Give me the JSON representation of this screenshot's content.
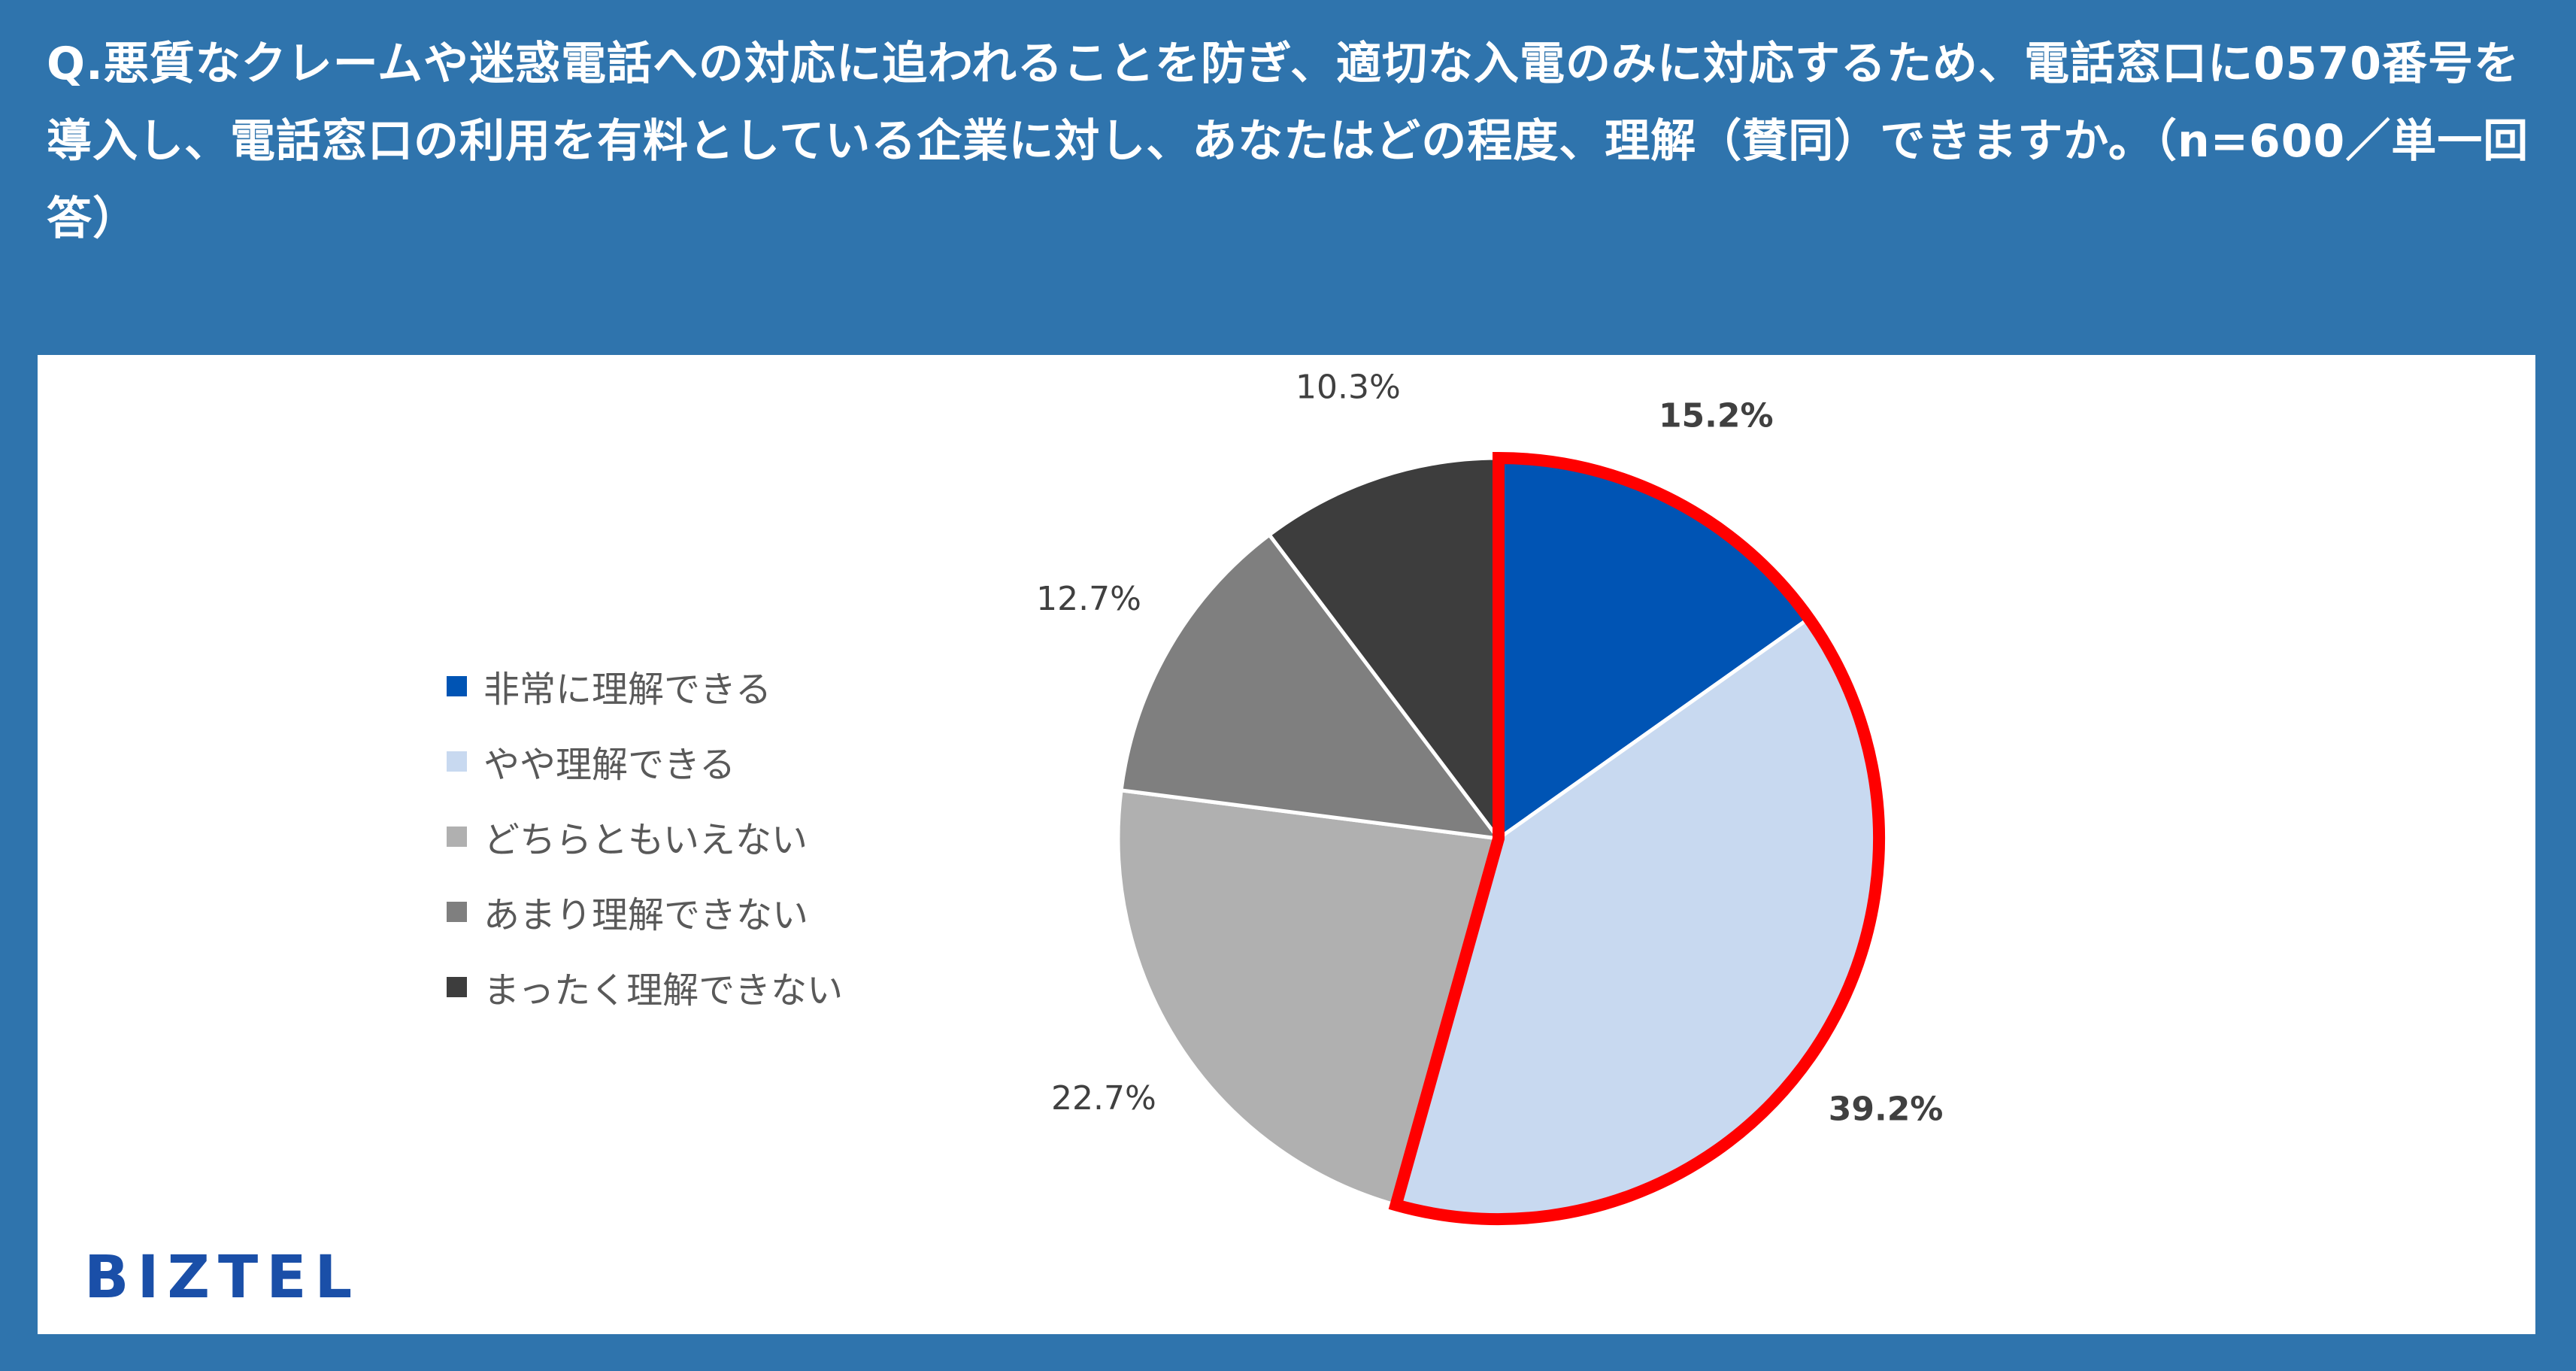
{
  "question": "Q.悪質なクレームや迷惑電話への対応に追われることを防ぎ、適切な入電のみに対応するため、電話窓口に0570番号を導入し、電話窓口の利用を有料としている企業に対し、あなたはどの程度、理解（賛同）できますか。（n=600／単一回答）",
  "logo": "BIZTEL",
  "colors": {
    "header_bg": "#2f74ad",
    "highlight_outline": "#ff0000"
  },
  "chart_data": {
    "type": "pie",
    "start_angle_deg": 0,
    "direction": "clockwise",
    "legend_position": "left",
    "highlighted_slices": [
      "非常に理解できる",
      "やや理解できる"
    ],
    "slices": [
      {
        "label": "非常に理解できる",
        "value": 15.2,
        "display": "15.2%",
        "color": "#0054b4",
        "bold": true
      },
      {
        "label": "やや理解できる",
        "value": 39.2,
        "display": "39.2%",
        "color": "#c8d9f0",
        "bold": true
      },
      {
        "label": "どちらともいえない",
        "value": 22.7,
        "display": "22.7%",
        "color": "#b0b0b0",
        "bold": false
      },
      {
        "label": "あまり理解できない",
        "value": 12.7,
        "display": "12.7%",
        "color": "#7f7f7f",
        "bold": false
      },
      {
        "label": "まったく理解できない",
        "value": 10.3,
        "display": "10.3%",
        "color": "#3d3d3d",
        "bold": false
      }
    ]
  }
}
